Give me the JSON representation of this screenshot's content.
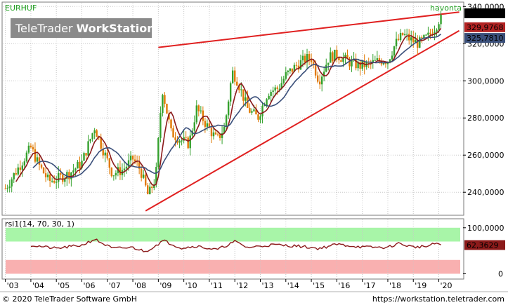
{
  "header": {
    "symbol": "EURHUF",
    "period_label": "havonta",
    "logo_light": "TeleTrader",
    "logo_bold": "WorkStation"
  },
  "footer": {
    "copyright": "© 2020 TeleTrader Software GmbH",
    "url": "https://workstation.teletrader.com"
  },
  "colors": {
    "up_bar": "#33a02c",
    "down_bar": "#e07800",
    "ma_fast": "#8b1a1a",
    "ma_slow": "#3a4f7a",
    "trendline": "#e02020",
    "rsi_line": "#8b1a1a",
    "rsi_overbought_zone": "#a8f5a8",
    "rsi_oversold_zone": "#f9b0b0",
    "current_price_tag": "#000000",
    "ma_fast_tag": "#b22222",
    "ma_slow_tag": "#3a4f7a"
  },
  "chart_data": [
    {
      "type": "candlestick",
      "symbol": "EURHUF",
      "interval": "havonta",
      "x_axis": {
        "labels": [
          "'03",
          "'04",
          "'05",
          "'06",
          "'07",
          "'08",
          "'09",
          "'10",
          "'11",
          "'12",
          "'13",
          "'14",
          "'15",
          "'16",
          "'17",
          "'18",
          "'19",
          "'20"
        ],
        "years": [
          2003,
          2004,
          2005,
          2006,
          2007,
          2008,
          2009,
          2010,
          2011,
          2012,
          2013,
          2014,
          2015,
          2016,
          2017,
          2018,
          2019,
          2020
        ],
        "range": [
          2002.9,
          2020.95
        ]
      },
      "y_axis": {
        "ticks": [
          240,
          260,
          280,
          300,
          320,
          340
        ],
        "tick_labels": [
          "240,0000",
          "260,0000",
          "280,0000",
          "300,0000",
          "320,0000",
          "340,0000"
        ],
        "range": [
          228,
          342
        ]
      },
      "price_series": {
        "name": "EURHUF",
        "anchors": [
          [
            2003.0,
            242
          ],
          [
            2003.5,
            253
          ],
          [
            2004.0,
            264
          ],
          [
            2004.3,
            255
          ],
          [
            2004.7,
            246
          ],
          [
            2005.0,
            247
          ],
          [
            2005.5,
            250
          ],
          [
            2006.0,
            256
          ],
          [
            2006.5,
            275
          ],
          [
            2006.8,
            264
          ],
          [
            2007.2,
            250
          ],
          [
            2007.6,
            252
          ],
          [
            2008.0,
            258
          ],
          [
            2008.3,
            252
          ],
          [
            2008.6,
            238
          ],
          [
            2008.9,
            248
          ],
          [
            2009.15,
            296
          ],
          [
            2009.5,
            272
          ],
          [
            2009.9,
            268
          ],
          [
            2010.2,
            266
          ],
          [
            2010.5,
            285
          ],
          [
            2010.9,
            276
          ],
          [
            2011.3,
            268
          ],
          [
            2011.6,
            275
          ],
          [
            2011.9,
            305
          ],
          [
            2012.1,
            300
          ],
          [
            2012.5,
            285
          ],
          [
            2012.9,
            280
          ],
          [
            2013.3,
            294
          ],
          [
            2013.7,
            296
          ],
          [
            2014.0,
            303
          ],
          [
            2014.4,
            308
          ],
          [
            2014.8,
            312
          ],
          [
            2015.0,
            312
          ],
          [
            2015.3,
            300
          ],
          [
            2015.7,
            313
          ],
          [
            2016.0,
            314
          ],
          [
            2016.5,
            310
          ],
          [
            2016.9,
            308
          ],
          [
            2017.3,
            309
          ],
          [
            2017.7,
            311
          ],
          [
            2018.0,
            311
          ],
          [
            2018.3,
            320
          ],
          [
            2018.6,
            325
          ],
          [
            2018.9,
            322
          ],
          [
            2019.2,
            320
          ],
          [
            2019.6,
            324
          ],
          [
            2019.9,
            330
          ],
          [
            2020.1,
            335.6
          ]
        ]
      },
      "moving_averages": [
        {
          "role": "fast",
          "period": 6
        },
        {
          "role": "slow",
          "period": 14
        }
      ],
      "last_values": {
        "price": "335,5956",
        "ma_fast": "329,9768",
        "ma_slow": "325,7810"
      },
      "trendlines": [
        {
          "points": [
            [
              2009.0,
              318
            ],
            [
              2020.8,
              337
            ]
          ]
        },
        {
          "points": [
            [
              2008.5,
              230
            ],
            [
              2020.8,
              327
            ]
          ]
        }
      ],
      "grid": true
    },
    {
      "type": "line",
      "indicator": "rsi1(14, 70, 30, 1)",
      "y_axis": {
        "ticks": [
          0,
          100
        ],
        "tick_labels": [
          "0",
          "100,0000"
        ],
        "range": [
          -10,
          118
        ]
      },
      "zones": {
        "overbought": [
          70,
          100
        ],
        "oversold": [
          0,
          30
        ]
      },
      "anchors": [
        [
          2004.0,
          62
        ],
        [
          2005.0,
          55
        ],
        [
          2006.0,
          62
        ],
        [
          2006.5,
          75
        ],
        [
          2007.2,
          55
        ],
        [
          2008.0,
          57
        ],
        [
          2008.5,
          48
        ],
        [
          2009.2,
          72
        ],
        [
          2009.9,
          56
        ],
        [
          2010.5,
          60
        ],
        [
          2011.3,
          52
        ],
        [
          2012.0,
          70
        ],
        [
          2012.5,
          57
        ],
        [
          2013.5,
          63
        ],
        [
          2014.5,
          60
        ],
        [
          2015.3,
          55
        ],
        [
          2016.0,
          64
        ],
        [
          2017.0,
          58
        ],
        [
          2018.0,
          57
        ],
        [
          2018.4,
          66
        ],
        [
          2019.0,
          58
        ],
        [
          2019.6,
          60
        ],
        [
          2019.9,
          67
        ],
        [
          2020.1,
          62.3629
        ]
      ],
      "last_value": "62,3629",
      "grid": true
    }
  ]
}
